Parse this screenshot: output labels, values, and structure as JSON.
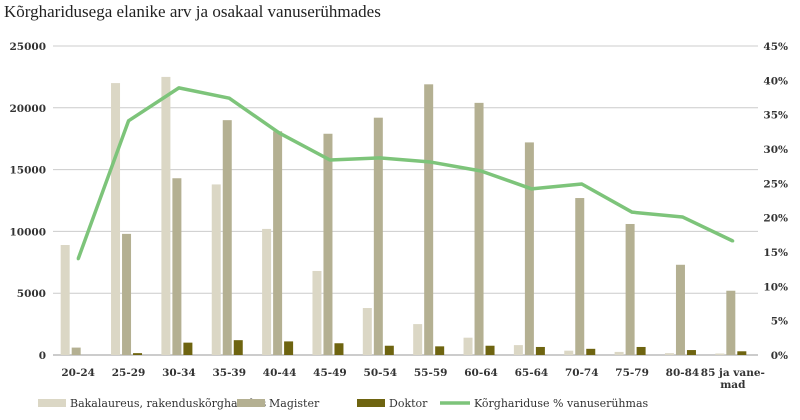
{
  "chart_data": {
    "type": "bar",
    "title": "Kõrgharidusega elanike arv ja osakaal vanuserühmades",
    "categories": [
      "20-24",
      "25-29",
      "30-34",
      "35-39",
      "40-44",
      "45-49",
      "50-54",
      "55-59",
      "60-64",
      "65-64",
      "70-74",
      "75-79",
      "80-84",
      "85 ja vane-mad"
    ],
    "category_lines": [
      [
        "20-24"
      ],
      [
        "25-29"
      ],
      [
        "30-34"
      ],
      [
        "35-39"
      ],
      [
        "40-44"
      ],
      [
        "45-49"
      ],
      [
        "50-54"
      ],
      [
        "55-59"
      ],
      [
        "60-64"
      ],
      [
        "65-64"
      ],
      [
        "70-74"
      ],
      [
        "75-79"
      ],
      [
        "80-84"
      ],
      [
        "85 ja vane-",
        "mad"
      ]
    ],
    "y_left": {
      "ylim": [
        0,
        25000
      ],
      "ticks": [
        0,
        5000,
        10000,
        15000,
        20000,
        25000
      ]
    },
    "y_right": {
      "ylim": [
        0,
        45
      ],
      "ticks": [
        "0%",
        "5%",
        "10%",
        "15%",
        "20%",
        "25%",
        "30%",
        "35%",
        "40%",
        "45%"
      ]
    },
    "grid": true,
    "legend_placement": "bottom",
    "series": [
      {
        "name": "Bakalaureus, rakenduskõrgharidus",
        "type": "bar",
        "axis": "left",
        "color": "#dbd7c5",
        "values": [
          8900,
          22000,
          22500,
          13800,
          10200,
          6800,
          3800,
          2500,
          1400,
          800,
          350,
          250,
          150,
          120
        ]
      },
      {
        "name": "Magister",
        "type": "bar",
        "axis": "left",
        "color": "#b4b092",
        "values": [
          600,
          9800,
          14300,
          19000,
          18100,
          17900,
          19200,
          21900,
          20400,
          17200,
          12700,
          10600,
          7300,
          5200
        ]
      },
      {
        "name": "Doktor",
        "type": "bar",
        "axis": "left",
        "color": "#6e6410",
        "values": [
          0,
          150,
          1000,
          1200,
          1100,
          950,
          750,
          700,
          750,
          650,
          500,
          650,
          400,
          300
        ]
      },
      {
        "name": "Kõrghariduse % vanuserühmas",
        "type": "line",
        "axis": "right",
        "color": "#7dc47a",
        "values": [
          14.0,
          34.1,
          38.9,
          37.4,
          32.3,
          28.4,
          28.7,
          28.1,
          26.8,
          24.2,
          24.9,
          20.8,
          20.1,
          16.6
        ]
      }
    ]
  }
}
